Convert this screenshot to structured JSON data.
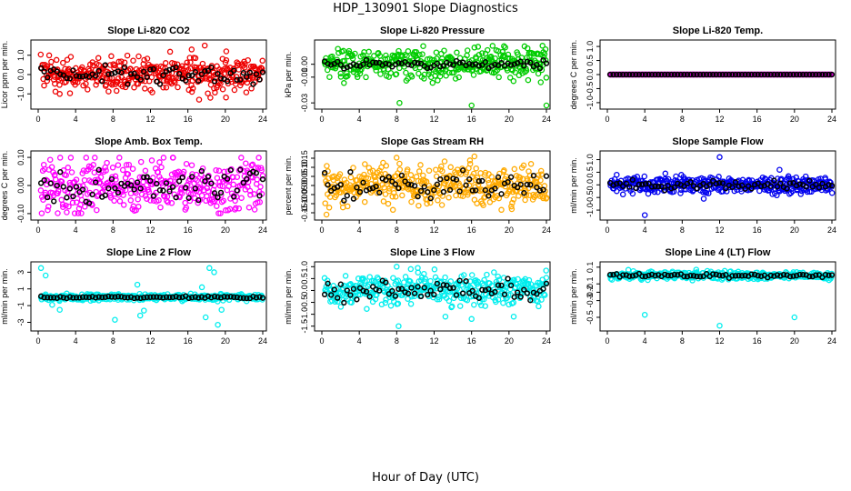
{
  "figure": {
    "title": "HDP_130901  Slope Diagnostics",
    "xlabel": "Hour of Day (UTC)"
  },
  "chart_data": [
    {
      "type": "scatter",
      "title": "Slope Li-820 CO2",
      "ylabel": "Licor ppm per min.",
      "xlim": [
        0,
        24
      ],
      "ylim": [
        -1.6,
        1.6
      ],
      "xticks": [
        0,
        4,
        8,
        12,
        16,
        20,
        24
      ],
      "yticks": [
        -1.0,
        0.0,
        1.0
      ],
      "yticklabels": [
        "-1.0",
        "0.0",
        "1.0"
      ],
      "colors": {
        "main": "#ee0000",
        "secondary": "#000000"
      },
      "main_center": 0.0,
      "main_spread": 0.42,
      "black_spread": 0.22,
      "outliers": [
        [
          17.8,
          1.5
        ],
        [
          16.4,
          1.3
        ],
        [
          17.2,
          -1.3
        ],
        [
          20.1,
          1.2
        ],
        [
          2.3,
          -1.0
        ],
        [
          18.4,
          -1.2
        ],
        [
          12.0,
          -0.8
        ],
        [
          14.3,
          0.6
        ]
      ]
    },
    {
      "type": "scatter",
      "title": "Slope Li-820 Pressure",
      "ylabel": "kPa per min.",
      "xlim": [
        0,
        24
      ],
      "ylim": [
        -0.032,
        0.016
      ],
      "xticks": [
        0,
        4,
        8,
        12,
        16,
        20,
        24
      ],
      "yticks": [
        -0.03,
        -0.01,
        0.0
      ],
      "yticklabels": [
        "-0.03",
        "-0.01",
        "0.00"
      ],
      "colors": {
        "main": "#00cc00",
        "secondary": "#000000"
      },
      "main_center": 0.0,
      "main_spread": 0.006,
      "black_spread": 0.0012,
      "outliers": [
        [
          8.3,
          -0.03
        ],
        [
          16.0,
          -0.032
        ],
        [
          24.0,
          -0.032
        ],
        [
          16.3,
          0.013
        ],
        [
          17.7,
          0.011
        ],
        [
          23.4,
          -0.014
        ],
        [
          7.9,
          -0.008
        ]
      ]
    },
    {
      "type": "scatter",
      "title": "Slope Li-820 Temp.",
      "ylabel": "degrees C per min.",
      "xlim": [
        0,
        24
      ],
      "ylim": [
        -1.1,
        1.1
      ],
      "xticks": [
        0,
        4,
        8,
        12,
        16,
        20,
        24
      ],
      "yticks": [
        -1.0,
        -0.5,
        0.0,
        0.5,
        1.0
      ],
      "yticklabels": [
        "-1.0",
        "-0.5",
        "0.0",
        "0.5",
        "1.0"
      ],
      "colors": {
        "main": "#cc00cc",
        "secondary": "#000000"
      },
      "main_center": 0.0,
      "main_spread": 0.0,
      "black_spread": 0.0,
      "outliers": []
    },
    {
      "type": "scatter",
      "title": "Slope Amb. Box Temp.",
      "ylabel": "degrees C per min.",
      "xlim": [
        0,
        24
      ],
      "ylim": [
        -0.11,
        0.11
      ],
      "xticks": [
        0,
        4,
        8,
        12,
        16,
        20,
        24
      ],
      "yticks": [
        -0.1,
        0.0,
        0.1
      ],
      "yticklabels": [
        "-0.10",
        "0.00",
        "0.10"
      ],
      "colors": {
        "main": "#ff00ff",
        "secondary": "#000000"
      },
      "main_center": 0.0,
      "main_spread": 0.05,
      "black_spread": 0.03,
      "outliers": []
    },
    {
      "type": "scatter",
      "title": "Slope Gas Stream RH",
      "ylabel": "percent per min.",
      "xlim": [
        0,
        24
      ],
      "ylim": [
        -0.17,
        0.17
      ],
      "xticks": [
        0,
        4,
        8,
        12,
        16,
        20,
        24
      ],
      "yticks": [
        -0.15,
        -0.1,
        -0.05,
        0.0,
        0.05,
        0.1,
        0.15
      ],
      "yticklabels": [
        "-0.15",
        "-0.10",
        "-0.05",
        "0.00",
        "0.05",
        "0.10",
        "0.15"
      ],
      "colors": {
        "main": "#ffaa00",
        "secondary": "#000000"
      },
      "main_center": 0.0,
      "main_spread": 0.055,
      "black_spread": 0.035,
      "outliers": [
        [
          0.5,
          -0.16
        ],
        [
          16.3,
          0.16
        ],
        [
          8.3,
          0.12
        ],
        [
          20.3,
          -0.13
        ]
      ]
    },
    {
      "type": "scatter",
      "title": "Slope Sample Flow",
      "ylabel": "ml/min per min.",
      "xlim": [
        0,
        24
      ],
      "ylim": [
        -1.25,
        1.2
      ],
      "xticks": [
        0,
        4,
        8,
        12,
        16,
        20,
        24
      ],
      "yticks": [
        -1.0,
        -0.5,
        0.0,
        0.5,
        1.0
      ],
      "yticklabels": [
        "-1.0",
        "-0.5",
        "0.0",
        "0.5",
        "1.0"
      ],
      "colors": {
        "main": "#0000ee",
        "secondary": "#000000"
      },
      "main_center": 0.0,
      "main_spread": 0.16,
      "black_spread": 0.08,
      "outliers": [
        [
          4.0,
          -1.2
        ],
        [
          12.0,
          1.1
        ],
        [
          18.4,
          0.6
        ],
        [
          10.3,
          -0.55
        ],
        [
          6.2,
          0.45
        ],
        [
          1.0,
          0.4
        ]
      ]
    },
    {
      "type": "scatter",
      "title": "Slope Line 2 Flow",
      "ylabel": "ml/min per min.",
      "xlim": [
        0,
        24
      ],
      "ylim": [
        -3.6,
        3.8
      ],
      "xticks": [
        0,
        4,
        8,
        12,
        16,
        20,
        24
      ],
      "yticks": [
        -3,
        -1,
        1,
        3
      ],
      "yticklabels": [
        "-3",
        "-1",
        "1",
        "3"
      ],
      "colors": {
        "main": "#00eeee",
        "secondary": "#000000"
      },
      "main_center": 0.0,
      "main_spread": 0.18,
      "black_spread": 0.06,
      "outliers": [
        [
          0.3,
          3.5
        ],
        [
          18.3,
          3.5
        ],
        [
          18.8,
          3.0
        ],
        [
          8.2,
          -2.7
        ],
        [
          19.2,
          -3.3
        ],
        [
          17.9,
          -2.4
        ],
        [
          10.9,
          -2.2
        ],
        [
          11.3,
          -1.6
        ],
        [
          2.3,
          -1.5
        ],
        [
          0.8,
          2.6
        ],
        [
          1.5,
          -0.9
        ],
        [
          10.6,
          1.5
        ],
        [
          17.5,
          1.2
        ],
        [
          19.6,
          -1.5
        ]
      ]
    },
    {
      "type": "scatter",
      "title": "Slope Line 3 Flow",
      "ylabel": "ml/min per min.",
      "xlim": [
        0,
        24
      ],
      "ylim": [
        -1.55,
        1.05
      ],
      "xticks": [
        0,
        4,
        8,
        12,
        16,
        20,
        24
      ],
      "yticks": [
        -1.5,
        -1.0,
        -0.5,
        0.0,
        0.5,
        1.0
      ],
      "yticklabels": [
        "-1.5",
        "-1.0",
        "-0.5",
        "0.0",
        "0.5",
        "1.0"
      ],
      "colors": {
        "main": "#00eeee",
        "secondary": "#000000"
      },
      "main_center": 0.0,
      "main_spread": 0.32,
      "black_spread": 0.22,
      "outliers": [
        [
          8.2,
          -1.5
        ],
        [
          8.0,
          1.0
        ],
        [
          13.2,
          -1.1
        ],
        [
          16.0,
          -1.2
        ],
        [
          20.5,
          -1.1
        ],
        [
          9.5,
          0.9
        ]
      ]
    },
    {
      "type": "scatter",
      "title": "Slope Line 4 (LT) Flow",
      "ylabel": "ml/min per min.",
      "xlim": [
        0,
        24
      ],
      "ylim": [
        -0.62,
        0.12
      ],
      "xticks": [
        0,
        4,
        8,
        12,
        16,
        20,
        24
      ],
      "yticks": [
        -0.5,
        -0.3,
        -0.2,
        -0.1,
        0.1
      ],
      "yticklabels": [
        "-0.5",
        "-0.3",
        "-0.2",
        "-0.1",
        "0.1"
      ],
      "colors": {
        "main": "#00eeee",
        "secondary": "#000000"
      },
      "main_center": 0.0,
      "main_spread": 0.022,
      "black_spread": 0.01,
      "outliers": [
        [
          4.0,
          -0.47
        ],
        [
          12.0,
          -0.6
        ],
        [
          20.0,
          -0.5
        ],
        [
          0.5,
          -0.05
        ],
        [
          9.5,
          0.07
        ]
      ]
    }
  ]
}
